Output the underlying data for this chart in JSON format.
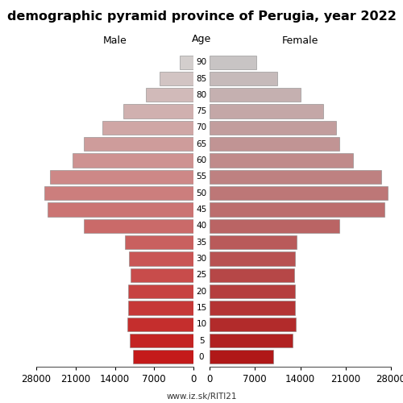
{
  "title": "demographic pyramid province of Perugia, year 2022",
  "male_label": "Male",
  "female_label": "Female",
  "age_label": "Age",
  "footer": "www.iz.sk/RITI21",
  "age_groups": [
    0,
    5,
    10,
    15,
    20,
    25,
    30,
    35,
    40,
    45,
    50,
    55,
    60,
    65,
    70,
    75,
    80,
    85,
    90
  ],
  "male_values": [
    10800,
    11300,
    11800,
    11700,
    11600,
    11200,
    11500,
    12200,
    19500,
    26000,
    26500,
    25500,
    21500,
    19500,
    16200,
    12500,
    8500,
    6000,
    2500
  ],
  "female_values": [
    9800,
    12800,
    13300,
    13200,
    13200,
    13100,
    13200,
    13500,
    20000,
    27000,
    27500,
    26500,
    22200,
    20000,
    19500,
    17500,
    14000,
    10400,
    7200
  ],
  "xlim": 28000,
  "xticks": [
    0,
    7000,
    14000,
    21000,
    28000
  ],
  "bar_height": 0.85,
  "bg_color": "#ffffff",
  "title_fontsize": 11.5,
  "label_fontsize": 9,
  "tick_fontsize": 8.5,
  "age_fontsize": 7.5,
  "footer_fontsize": 7.5
}
